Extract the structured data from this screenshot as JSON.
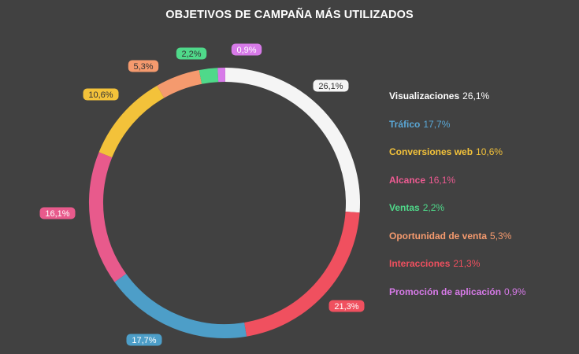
{
  "chart_data": {
    "type": "pie",
    "title": "OBJETIVOS DE CAMPAÑA MÁS UTILIZADOS",
    "donut": true,
    "legend_position": "right",
    "slices": [
      {
        "name": "Visualizaciones",
        "value": 26.1,
        "label": "26,1%",
        "color": "#f5f5f5",
        "label_text_color": "#333333"
      },
      {
        "name": "Interacciones",
        "value": 21.3,
        "label": "21,3%",
        "color": "#f0505f",
        "label_text_color": "#ffffff"
      },
      {
        "name": "Tráfico",
        "value": 17.7,
        "label": "17,7%",
        "color": "#4d9ec8",
        "label_text_color": "#ffffff"
      },
      {
        "name": "Alcance",
        "value": 16.1,
        "label": "16,1%",
        "color": "#e85a8c",
        "label_text_color": "#ffffff"
      },
      {
        "name": "Conversiones web",
        "value": 10.6,
        "label": "10,6%",
        "color": "#f3c23a",
        "label_text_color": "#333333"
      },
      {
        "name": "Oportunidad de venta",
        "value": 5.3,
        "label": "5,3%",
        "color": "#f59a6e",
        "label_text_color": "#333333"
      },
      {
        "name": "Ventas",
        "value": 2.2,
        "label": "2,2%",
        "color": "#4fd98a",
        "label_text_color": "#333333"
      },
      {
        "name": "Promoción de aplicación",
        "value": 0.9,
        "label": "0,9%",
        "color": "#d77ae8",
        "label_text_color": "#ffffff"
      }
    ],
    "legend": [
      {
        "name": "Visualizaciones",
        "value": "26,1%",
        "color": "#ffffff"
      },
      {
        "name": "Tráfico",
        "value": "17,7%",
        "color": "#5aa7d6"
      },
      {
        "name": "Conversiones web",
        "value": "10,6%",
        "color": "#f3c23a"
      },
      {
        "name": "Alcance",
        "value": "16,1%",
        "color": "#ee5b92"
      },
      {
        "name": "Ventas",
        "value": "2,2%",
        "color": "#4fd98a"
      },
      {
        "name": "Oportunidad de venta",
        "value": "5,3%",
        "color": "#f59a6e"
      },
      {
        "name": "Interacciones",
        "value": "21,3%",
        "color": "#f0505f"
      },
      {
        "name": "Promoción de aplicación",
        "value": "0,9%",
        "color": "#d77ae8"
      }
    ]
  }
}
